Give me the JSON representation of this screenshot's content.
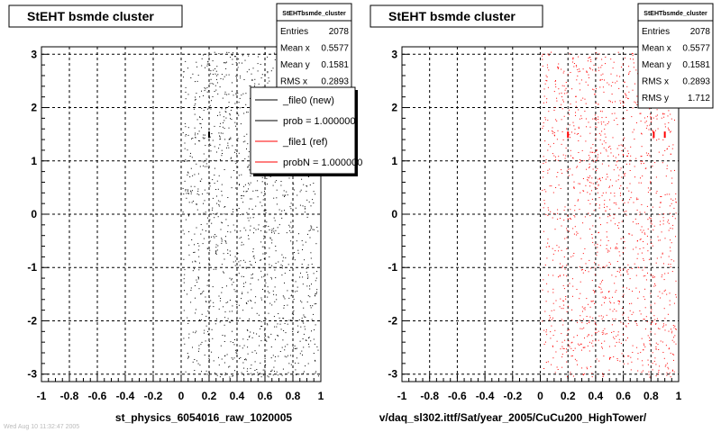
{
  "chart_data": [
    {
      "type": "scatter",
      "title": "StEHT bsmde cluster",
      "xlabel": "st_physics_6054016_raw_1020005",
      "ylabel": "",
      "xlim": [
        -1,
        1
      ],
      "ylim": [
        -3.14,
        3.14
      ],
      "xticks": [
        "-1",
        "-0.8",
        "-0.6",
        "-0.4",
        "-0.2",
        "0",
        "0.2",
        "0.4",
        "0.6",
        "0.8",
        "1"
      ],
      "yticks": [
        "-3",
        "-2",
        "-1",
        "0",
        "1",
        "2",
        "3"
      ],
      "grid": true,
      "marker_color": "#000000",
      "stats": {
        "name": "StEHTbsmde_cluster",
        "rows": [
          {
            "label": "Entries",
            "value": "2078"
          },
          {
            "label": "Mean x",
            "value": "0.5577"
          },
          {
            "label": "Mean y",
            "value": "0.1581"
          },
          {
            "label": "RMS x",
            "value": "0.2893"
          }
        ]
      },
      "legend": {
        "placement": "right",
        "entries": [
          {
            "label": "_file0 (new)",
            "color": "#000000"
          },
          {
            "label": "prob = 1.000000",
            "color": "#000000"
          },
          {
            "label": "_file1 (ref)",
            "color": "#ff0000"
          },
          {
            "label": "probN = 1.000000",
            "color": "#ff0000"
          }
        ]
      },
      "series": [
        {
          "values": [],
          "note": ""
        }
      ]
    },
    {
      "type": "scatter",
      "title": "StEHT bsmde cluster",
      "xlabel": "v/daq_sl302.ittf/Sat/year_2005/CuCu200_HighTower/",
      "ylabel": "",
      "xlim": [
        -1,
        1
      ],
      "ylim": [
        -3.14,
        3.14
      ],
      "xticks": [
        "-1",
        "-0.8",
        "-0.6",
        "-0.4",
        "-0.2",
        "0",
        "0.2",
        "0.4",
        "0.6",
        "0.8",
        "1"
      ],
      "yticks": [
        "-3",
        "-2",
        "-1",
        "0",
        "1",
        "2",
        "3"
      ],
      "grid": true,
      "marker_color": "#ff0000",
      "stats": {
        "name": "StEHTbsmde_cluster",
        "rows": [
          {
            "label": "Entries",
            "value": "2078"
          },
          {
            "label": "Mean x",
            "value": "0.5577"
          },
          {
            "label": "Mean y",
            "value": "0.1581"
          },
          {
            "label": "RMS x",
            "value": "0.2893"
          },
          {
            "label": "RMS y",
            "value": "1.712"
          }
        ]
      },
      "series": [
        {
          "values": [],
          "note": ""
        }
      ]
    }
  ],
  "footer_timestamp": "Wed Aug 10 11:32:47 2005"
}
